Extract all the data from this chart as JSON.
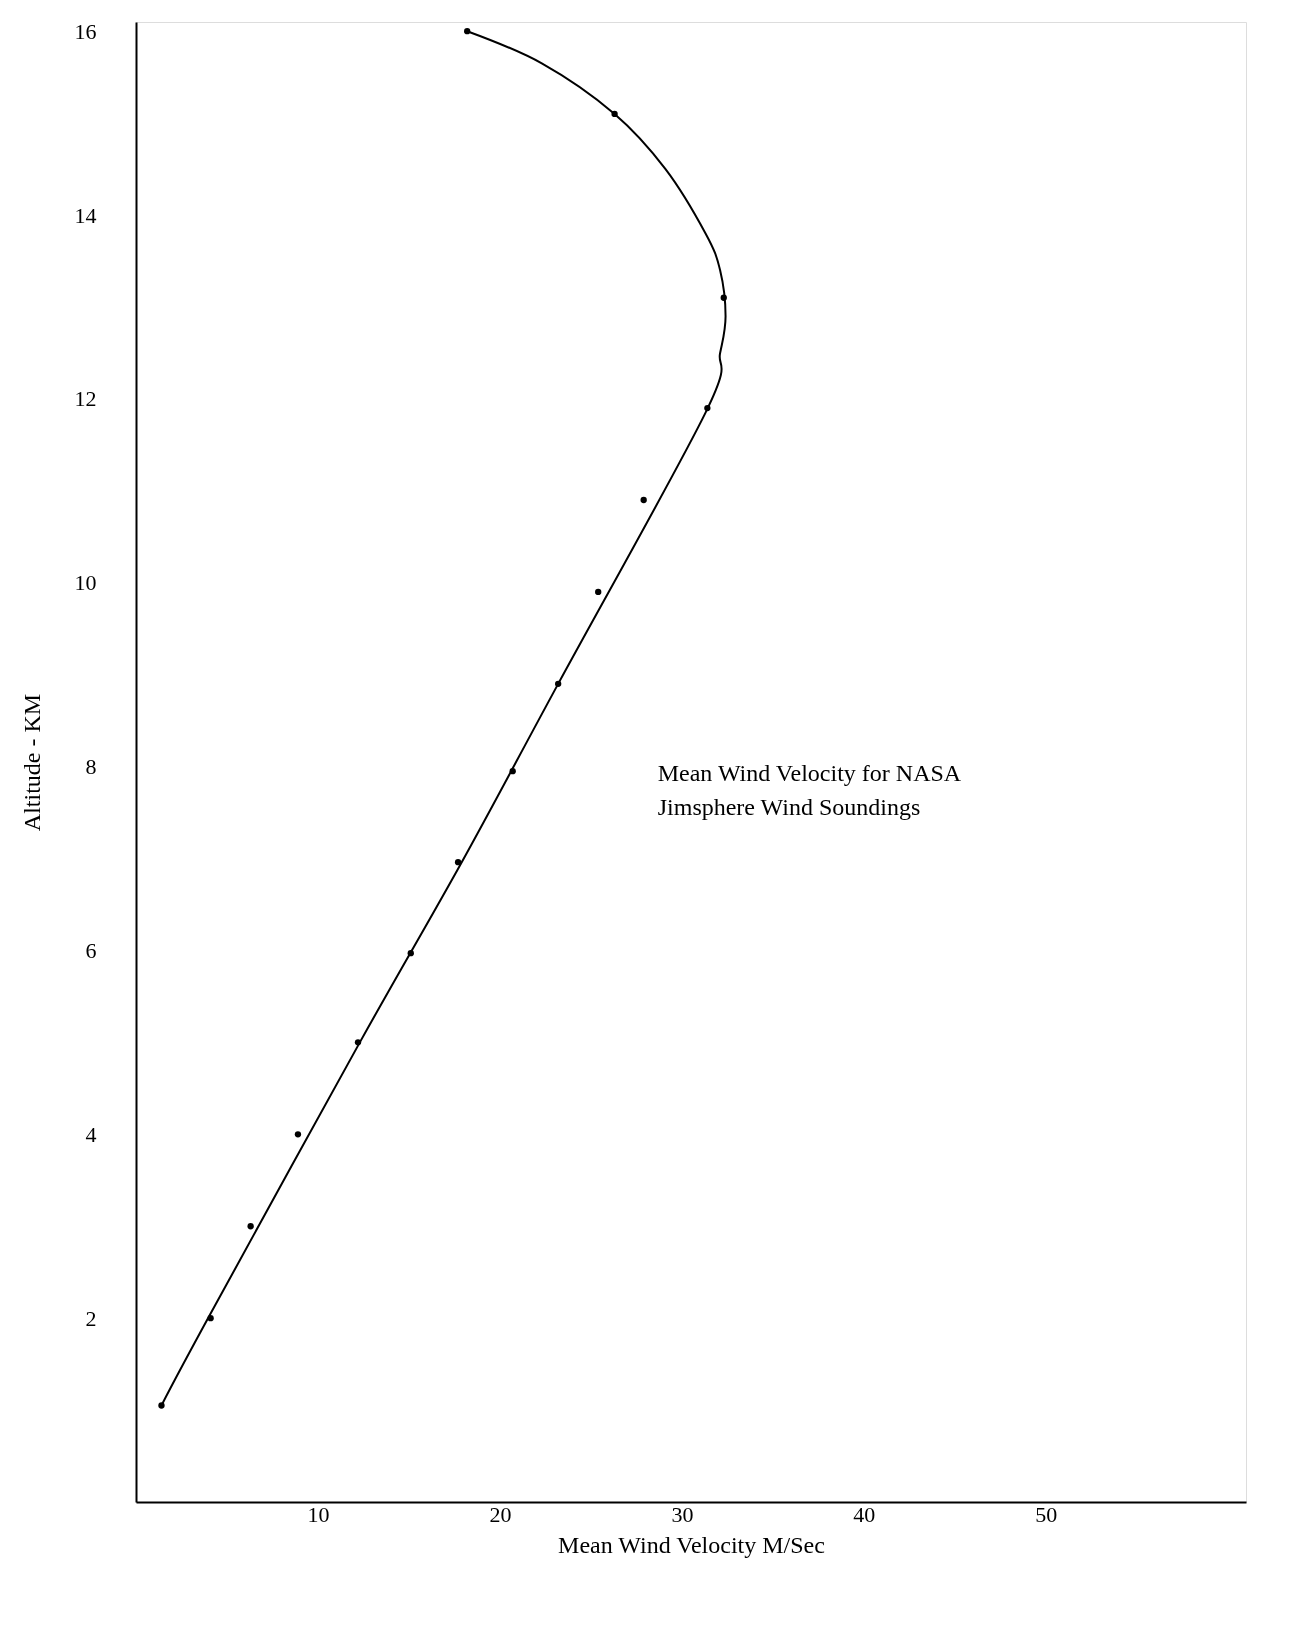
{
  "chart_data": {
    "type": "scatter",
    "xlabel": "Mean   Wind Velocity  M/Sec",
    "ylabel": "Altitude - KM",
    "annotations": [
      "Mean Wind Velocity for NASA\nJimsphere Wind Soundings"
    ],
    "xlim": [
      0,
      61
    ],
    "ylim": [
      0,
      16.1
    ],
    "xticks": [
      10,
      20,
      30,
      40,
      50
    ],
    "yticks": [
      2,
      4,
      6,
      8,
      10,
      12,
      14,
      16
    ],
    "grid": false,
    "series": [
      {
        "color": "#000000",
        "marker": "circle",
        "x": [
          1.4,
          4.1,
          6.3,
          8.9,
          12.2,
          15.1,
          17.7,
          20.7,
          23.2,
          25.4,
          27.9,
          31.4,
          32.3,
          26.3,
          18.2
        ],
        "values": [
          1.05,
          2.0,
          3.0,
          4.0,
          5.0,
          5.97,
          6.96,
          7.95,
          8.9,
          9.9,
          10.9,
          11.9,
          13.1,
          15.1,
          16.0
        ]
      },
      {
        "type": "line",
        "color": "#000000",
        "line_style": "solid",
        "x": [
          1.4,
          4.1,
          12.3,
          17.9,
          23.2,
          31.3,
          32.1,
          32.4,
          32.1,
          31.3,
          29.1,
          26.3,
          22.3,
          18.2
        ],
        "values": [
          1.05,
          2.05,
          5.0,
          6.96,
          8.9,
          11.85,
          12.5,
          12.9,
          13.4,
          13.8,
          14.5,
          15.1,
          15.65,
          16.0
        ]
      }
    ]
  }
}
